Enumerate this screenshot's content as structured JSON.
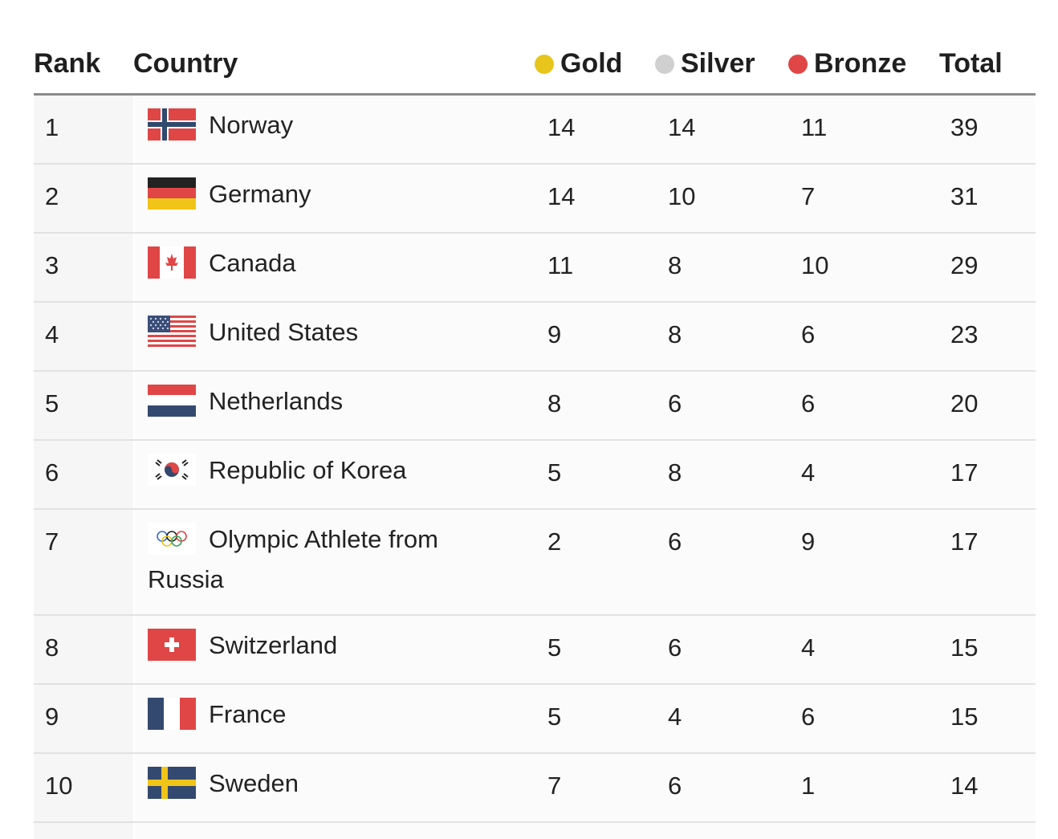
{
  "colors": {
    "gold_dot": "#e8c51c",
    "silver_dot": "#d0d0d0",
    "bronze_dot": "#e04646"
  },
  "header": {
    "rank": "Rank",
    "country": "Country",
    "gold": "Gold",
    "silver": "Silver",
    "bronze": "Bronze",
    "total": "Total"
  },
  "rows": [
    {
      "rank": "1",
      "country": "Norway",
      "flag": "norway-flag-icon",
      "gold": "14",
      "silver": "14",
      "bronze": "11",
      "total": "39"
    },
    {
      "rank": "2",
      "country": "Germany",
      "flag": "germany-flag-icon",
      "gold": "14",
      "silver": "10",
      "bronze": "7",
      "total": "31"
    },
    {
      "rank": "3",
      "country": "Canada",
      "flag": "canada-flag-icon",
      "gold": "11",
      "silver": "8",
      "bronze": "10",
      "total": "29"
    },
    {
      "rank": "4",
      "country": "United States",
      "flag": "usa-flag-icon",
      "gold": "9",
      "silver": "8",
      "bronze": "6",
      "total": "23"
    },
    {
      "rank": "5",
      "country": "Netherlands",
      "flag": "netherlands-flag-icon",
      "gold": "8",
      "silver": "6",
      "bronze": "6",
      "total": "20"
    },
    {
      "rank": "6",
      "country": "Republic of Korea",
      "flag": "korea-flag-icon",
      "gold": "5",
      "silver": "8",
      "bronze": "4",
      "total": "17"
    },
    {
      "rank": "7",
      "country": "Olympic Athlete from Russia",
      "flag": "olympic-rings-icon",
      "gold": "2",
      "silver": "6",
      "bronze": "9",
      "total": "17"
    },
    {
      "rank": "8",
      "country": "Switzerland",
      "flag": "switzerland-flag-icon",
      "gold": "5",
      "silver": "6",
      "bronze": "4",
      "total": "15"
    },
    {
      "rank": "9",
      "country": "France",
      "flag": "france-flag-icon",
      "gold": "5",
      "silver": "4",
      "bronze": "6",
      "total": "15"
    },
    {
      "rank": "10",
      "country": "Sweden",
      "flag": "sweden-flag-icon",
      "gold": "7",
      "silver": "6",
      "bronze": "1",
      "total": "14"
    }
  ]
}
